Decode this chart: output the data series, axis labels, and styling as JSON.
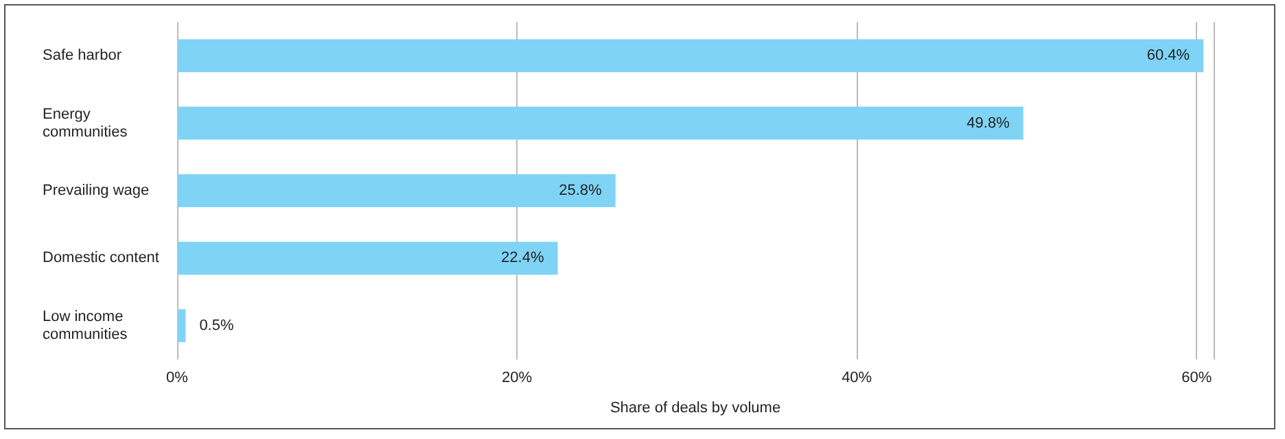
{
  "chart_data": {
    "type": "bar",
    "orientation": "horizontal",
    "categories": [
      "Safe harbor",
      "Energy communities",
      "Prevailing wage",
      "Domestic content",
      "Low income communities"
    ],
    "values": [
      60.4,
      49.8,
      25.8,
      22.4,
      0.5
    ],
    "value_labels": [
      "60.4%",
      "49.8%",
      "25.8%",
      "22.4%",
      "0.5%"
    ],
    "color": "#7fd3f5",
    "xlabel": "Share of deals by volume",
    "xlim": [
      0,
      61
    ],
    "xticks": [
      {
        "value": 0,
        "label": "0%"
      },
      {
        "value": 20,
        "label": "20%"
      },
      {
        "value": 40,
        "label": "40%"
      },
      {
        "value": 60,
        "label": "60%"
      }
    ],
    "grid": "x"
  }
}
